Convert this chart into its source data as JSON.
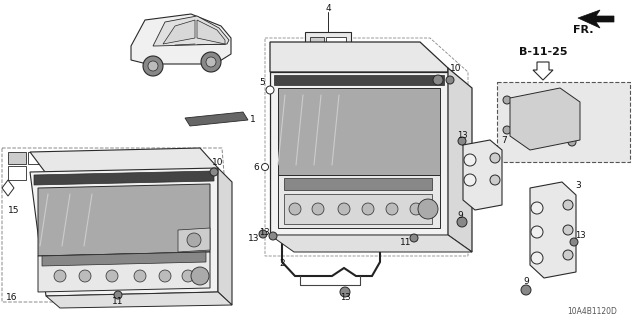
{
  "bg_color": "#ffffff",
  "diagram_id": "10A4B1120D",
  "ref_label": "B-11-25",
  "fr_label": "FR.",
  "fig_width": 6.4,
  "fig_height": 3.2,
  "dpi": 100,
  "line_color": "#2a2a2a",
  "gray_fill": "#cccccc",
  "light_gray": "#e8e8e8",
  "dark_gray": "#888888"
}
